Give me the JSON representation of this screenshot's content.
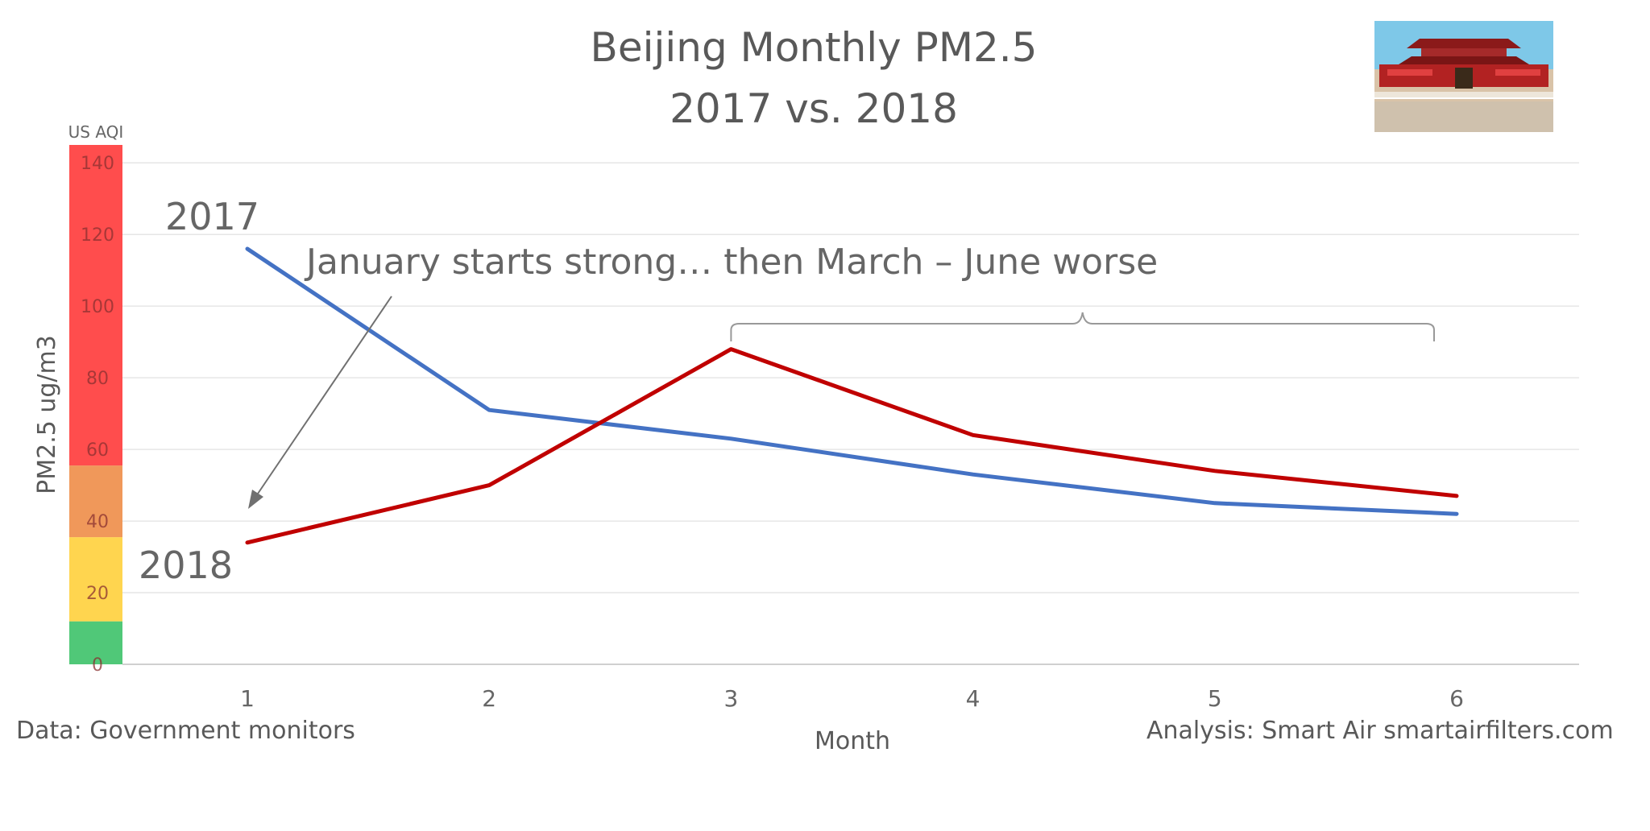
{
  "title_line1": "Beijing Monthly PM2.5",
  "title_line2": "2017 vs. 2018",
  "photo_icon": "tiananmen-gate-icon",
  "footer_left": "Data: Government monitors",
  "footer_right": "Analysis: Smart Air smartairfilters.com",
  "annotation": "January starts strong… then March – June worse",
  "aqi_band_label": "US AQI",
  "aqi_bands": [
    {
      "from": 0,
      "to": 12,
      "color": "#50C878"
    },
    {
      "from": 12,
      "to": 35.5,
      "color": "#FFD54F"
    },
    {
      "from": 35.5,
      "to": 55.5,
      "color": "#F0985A"
    },
    {
      "from": 55.5,
      "to": 145,
      "color": "#FF4D4D"
    }
  ],
  "chart_data": {
    "type": "line",
    "x": [
      1,
      2,
      3,
      4,
      5,
      6
    ],
    "xlabel": "Month",
    "ylabel": "PM2.5 ug/m3",
    "ylim": [
      0,
      145
    ],
    "yticks": [
      0,
      20,
      40,
      60,
      80,
      100,
      120,
      140
    ],
    "xticks": [
      "1",
      "2",
      "3",
      "4",
      "5",
      "6"
    ],
    "grid": true,
    "series": [
      {
        "name": "2017",
        "color": "#4472C4",
        "values": [
          116,
          71,
          63,
          53,
          45,
          42
        ]
      },
      {
        "name": "2018",
        "color": "#C00000",
        "values": [
          34,
          50,
          88,
          64,
          54,
          47
        ]
      }
    ]
  }
}
